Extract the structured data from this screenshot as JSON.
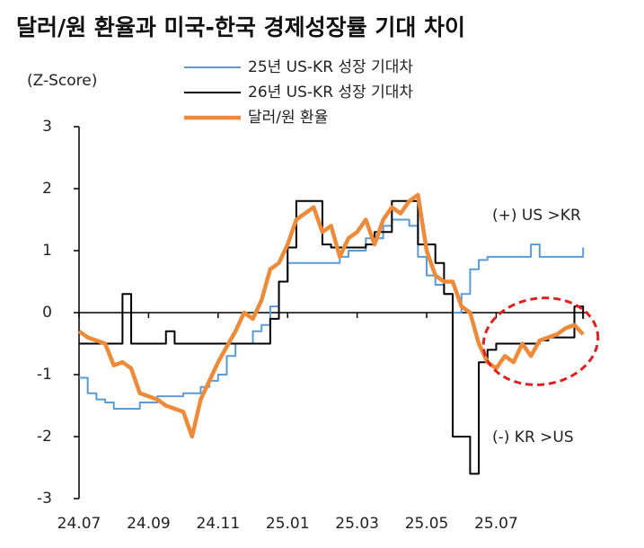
{
  "chart_data": {
    "type": "line",
    "title": "달러/원 환율과 미국-한국 경제성장률 기대 차이",
    "y_label": "(Z-Score)",
    "annotations": [
      "(+) US >KR",
      "(-) KR >US"
    ],
    "x": [
      0,
      0.25,
      0.5,
      0.75,
      1,
      1.25,
      1.5,
      1.75,
      2,
      2.25,
      2.5,
      2.75,
      3,
      3.25,
      3.5,
      3.75,
      4,
      4.25,
      4.5,
      4.75,
      5,
      5.25,
      5.5,
      5.75,
      6,
      6.25,
      6.5,
      6.75,
      7,
      7.25,
      7.5,
      7.75,
      8,
      8.25,
      8.5,
      8.75,
      9,
      9.25,
      9.5,
      9.75,
      10,
      10.25,
      10.5,
      10.75,
      11,
      11.25,
      11.5,
      11.75,
      12,
      12.25,
      12.5,
      12.75,
      13,
      13.25,
      13.5,
      13.75,
      14,
      14.25,
      14.5
    ],
    "xlim": [
      0,
      14.65
    ],
    "xticks": [
      {
        "value": 0,
        "label": "24.07"
      },
      {
        "value": 2,
        "label": "24.09"
      },
      {
        "value": 4,
        "label": "24.11"
      },
      {
        "value": 6,
        "label": "25.01"
      },
      {
        "value": 8,
        "label": "25.03"
      },
      {
        "value": 10,
        "label": "25.05"
      },
      {
        "value": 12,
        "label": "25.07"
      }
    ],
    "ylim": [
      -3,
      3
    ],
    "yticks": [
      -3,
      -2,
      -1,
      0,
      1,
      2,
      3
    ],
    "series": [
      {
        "name": "25년 US-KR 성장 기대차",
        "color": "#5b9bd5",
        "width": 2,
        "drawstyle": "steps",
        "values": [
          -1.05,
          -1.3,
          -1.4,
          -1.45,
          -1.55,
          -1.55,
          -1.55,
          -1.45,
          -1.45,
          -1.35,
          -1.35,
          -1.35,
          -1.3,
          -1.3,
          -1.2,
          -1.1,
          -1.0,
          -0.7,
          -0.5,
          -0.5,
          -0.3,
          -0.2,
          0.1,
          0.5,
          0.8,
          0.8,
          0.8,
          0.8,
          0.8,
          0.8,
          0.9,
          1.0,
          1.0,
          1.2,
          1.2,
          1.4,
          1.5,
          1.5,
          1.4,
          0.9,
          0.6,
          0.45,
          0.3,
          0.0,
          0.3,
          0.7,
          0.85,
          0.9,
          0.9,
          0.9,
          0.9,
          0.9,
          1.1,
          0.9,
          0.9,
          0.9,
          0.9,
          0.9,
          1.05
        ]
      },
      {
        "name": "26년 US-KR 성장 기대차",
        "color": "#000000",
        "width": 2,
        "drawstyle": "steps",
        "values": [
          -0.5,
          -0.5,
          -0.5,
          -0.5,
          -0.5,
          0.3,
          -0.5,
          -0.5,
          -0.5,
          -0.5,
          -0.3,
          -0.5,
          -0.5,
          -0.5,
          -0.5,
          -0.5,
          -0.5,
          -0.5,
          -0.5,
          -0.5,
          -0.5,
          -0.5,
          -0.1,
          0.5,
          1.05,
          1.8,
          1.8,
          1.8,
          1.1,
          1.05,
          1.05,
          1.05,
          1.05,
          1.1,
          1.3,
          1.3,
          1.8,
          1.8,
          1.8,
          1.1,
          1.1,
          0.8,
          0.3,
          -2.0,
          -2.0,
          -2.6,
          -0.8,
          -0.6,
          -0.5,
          -0.5,
          -0.5,
          -0.5,
          -0.5,
          -0.45,
          -0.4,
          -0.4,
          -0.4,
          0.1,
          -0.1
        ]
      },
      {
        "name": "달러/원 환율",
        "color": "#ed8b3a",
        "width": 4.5,
        "drawstyle": "linear",
        "values": [
          -0.3,
          -0.4,
          -0.45,
          -0.5,
          -0.85,
          -0.8,
          -0.9,
          -1.3,
          -1.35,
          -1.4,
          -1.5,
          -1.55,
          -1.6,
          -2.0,
          -1.4,
          -1.1,
          -0.8,
          -0.55,
          -0.3,
          0.0,
          -0.1,
          0.2,
          0.7,
          0.8,
          1.1,
          1.5,
          1.6,
          1.7,
          1.3,
          1.4,
          0.9,
          1.2,
          1.3,
          1.5,
          1.1,
          1.5,
          1.7,
          1.6,
          1.8,
          1.9,
          1.0,
          0.6,
          0.5,
          0.5,
          0.1,
          0.0,
          -0.5,
          -0.8,
          -0.9,
          -0.7,
          -0.8,
          -0.5,
          -0.7,
          -0.45,
          -0.4,
          -0.35,
          -0.25,
          -0.2,
          -0.35
        ]
      }
    ]
  }
}
